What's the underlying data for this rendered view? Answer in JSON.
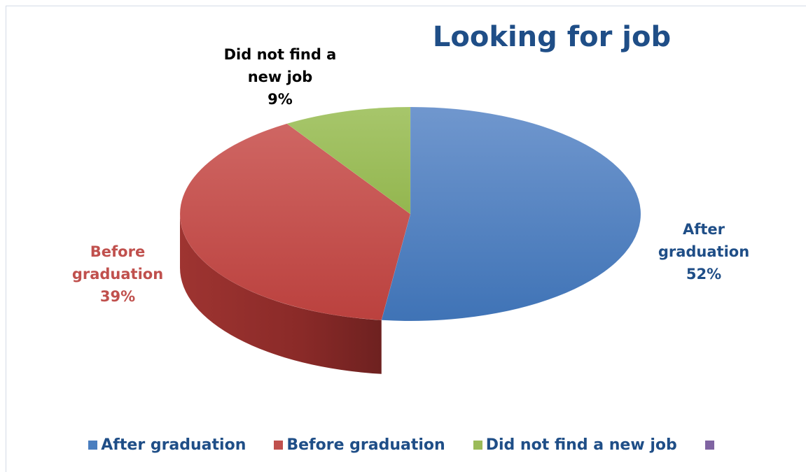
{
  "chart_data": {
    "type": "pie",
    "title": "Looking for job",
    "categories": [
      "After graduation",
      "Before graduation",
      "Did not find a new job"
    ],
    "values": [
      52,
      39,
      9
    ],
    "unit": "%",
    "data_labels": [
      {
        "line1": "After",
        "line2": "graduation",
        "pct": "52%"
      },
      {
        "line1": "Before",
        "line2": "graduation",
        "pct": "39%"
      },
      {
        "line1": "Did not find a",
        "line2": "new job",
        "pct": "9%"
      }
    ],
    "legend": {
      "placement": "bottom",
      "entries": [
        "After graduation",
        "Before graduation",
        "Did not find a new job",
        ""
      ]
    },
    "colors": {
      "after": "#4a7ebf",
      "before": "#c0504d",
      "nojob": "#9bbb59",
      "extra": "#8064a2",
      "title": "#1f4e87",
      "label_after": "#1f4e87",
      "label_before": "#c0504d",
      "label_nojob": "#000000"
    },
    "style": "3d"
  }
}
